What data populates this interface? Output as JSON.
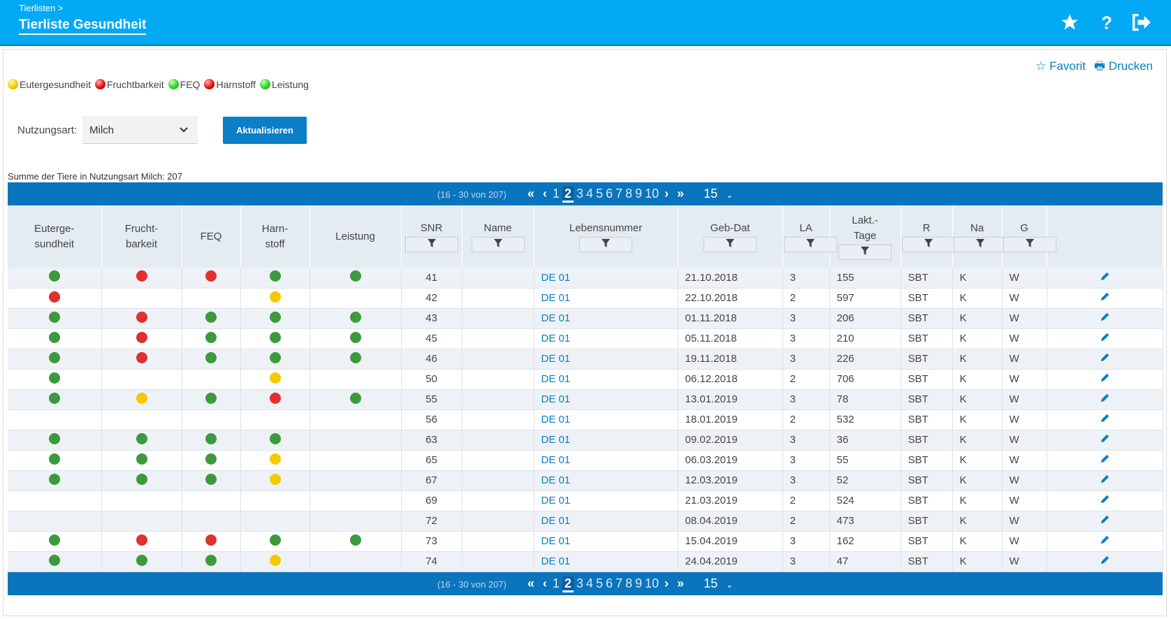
{
  "header": {
    "breadcrumb": "Tierlisten >",
    "title": "Tierliste Gesundheit"
  },
  "actions": {
    "favorit": "Favorit",
    "drucken": "Drucken"
  },
  "legend": [
    {
      "label": "Eutergesundheit",
      "color": "yellow"
    },
    {
      "label": "Fruchtbarkeit",
      "color": "red"
    },
    {
      "label": "FEQ",
      "color": "green"
    },
    {
      "label": "Harnstoff",
      "color": "red"
    },
    {
      "label": "Leistung",
      "color": "green"
    }
  ],
  "filter": {
    "label": "Nutzungsart:",
    "value": "Milch",
    "button": "Aktualisieren"
  },
  "summary": "Summe der Tiere in Nutzungsart Milch: 207",
  "pagination": {
    "range": "(16 - 30 von 207)",
    "pages": [
      1,
      2,
      3,
      4,
      5,
      6,
      7,
      8,
      9,
      10
    ],
    "current": 2,
    "page_size": 15
  },
  "table": {
    "columns": [
      {
        "label": [
          "Euterge-",
          "sundheit"
        ]
      },
      {
        "label": [
          "Frucht-",
          "barkeit"
        ]
      },
      {
        "label": [
          "FEQ"
        ]
      },
      {
        "label": [
          "Harn-",
          "stoff"
        ]
      },
      {
        "label": [
          "Leistung"
        ]
      },
      {
        "label": [
          "SNR"
        ],
        "filter": true
      },
      {
        "label": [
          "Name"
        ],
        "filter": true
      },
      {
        "label": [
          "Lebensnummer"
        ],
        "filter": true
      },
      {
        "label": [
          "Geb-Dat"
        ],
        "filter": true
      },
      {
        "label": [
          "LA"
        ],
        "filter": true
      },
      {
        "label": [
          "Lakt.-",
          "Tage"
        ],
        "filter": true
      },
      {
        "label": [
          "R"
        ],
        "filter": true
      },
      {
        "label": [
          "Na"
        ],
        "filter": true
      },
      {
        "label": [
          "G"
        ],
        "filter": true
      }
    ],
    "rows": [
      {
        "status": [
          "green",
          "red",
          "red",
          "green",
          "green"
        ],
        "snr": "41",
        "lebensnummer": "DE 01",
        "geb_dat": "21.10.2018",
        "la": "3",
        "lakt_tage": "155",
        "r": "SBT",
        "na": "K",
        "g": "W"
      },
      {
        "status": [
          "red",
          null,
          null,
          "yellow",
          null
        ],
        "snr": "42",
        "lebensnummer": "DE 01",
        "geb_dat": "22.10.2018",
        "la": "2",
        "lakt_tage": "597",
        "r": "SBT",
        "na": "K",
        "g": "W"
      },
      {
        "status": [
          "green",
          "red",
          "green",
          "green",
          "green"
        ],
        "snr": "43",
        "lebensnummer": "DE 01",
        "geb_dat": "01.11.2018",
        "la": "3",
        "lakt_tage": "206",
        "r": "SBT",
        "na": "K",
        "g": "W"
      },
      {
        "status": [
          "green",
          "red",
          "green",
          "green",
          "green"
        ],
        "snr": "45",
        "lebensnummer": "DE 01",
        "geb_dat": "05.11.2018",
        "la": "3",
        "lakt_tage": "210",
        "r": "SBT",
        "na": "K",
        "g": "W"
      },
      {
        "status": [
          "green",
          "red",
          "green",
          "green",
          "green"
        ],
        "snr": "46",
        "lebensnummer": "DE 01",
        "geb_dat": "19.11.2018",
        "la": "3",
        "lakt_tage": "226",
        "r": "SBT",
        "na": "K",
        "g": "W"
      },
      {
        "status": [
          "green",
          null,
          null,
          "yellow",
          null
        ],
        "snr": "50",
        "lebensnummer": "DE 01",
        "geb_dat": "06.12.2018",
        "la": "2",
        "lakt_tage": "706",
        "r": "SBT",
        "na": "K",
        "g": "W"
      },
      {
        "status": [
          "green",
          "yellow",
          "green",
          "red",
          "green"
        ],
        "snr": "55",
        "lebensnummer": "DE 01",
        "geb_dat": "13.01.2019",
        "la": "3",
        "lakt_tage": "78",
        "r": "SBT",
        "na": "K",
        "g": "W"
      },
      {
        "status": [
          null,
          null,
          null,
          null,
          null
        ],
        "snr": "56",
        "lebensnummer": "DE 01",
        "geb_dat": "18.01.2019",
        "la": "2",
        "lakt_tage": "532",
        "r": "SBT",
        "na": "K",
        "g": "W"
      },
      {
        "status": [
          "green",
          "green",
          "green",
          "green",
          null
        ],
        "snr": "63",
        "lebensnummer": "DE 01",
        "geb_dat": "09.02.2019",
        "la": "3",
        "lakt_tage": "36",
        "r": "SBT",
        "na": "K",
        "g": "W"
      },
      {
        "status": [
          "green",
          "green",
          "green",
          "yellow",
          null
        ],
        "snr": "65",
        "lebensnummer": "DE 01",
        "geb_dat": "06.03.2019",
        "la": "3",
        "lakt_tage": "55",
        "r": "SBT",
        "na": "K",
        "g": "W"
      },
      {
        "status": [
          "green",
          "green",
          "green",
          "yellow",
          null
        ],
        "snr": "67",
        "lebensnummer": "DE 01",
        "geb_dat": "12.03.2019",
        "la": "3",
        "lakt_tage": "52",
        "r": "SBT",
        "na": "K",
        "g": "W"
      },
      {
        "status": [
          null,
          null,
          null,
          null,
          null
        ],
        "snr": "69",
        "lebensnummer": "DE 01",
        "geb_dat": "21.03.2019",
        "la": "2",
        "lakt_tage": "524",
        "r": "SBT",
        "na": "K",
        "g": "W"
      },
      {
        "status": [
          null,
          null,
          null,
          null,
          null
        ],
        "snr": "72",
        "lebensnummer": "DE 01",
        "geb_dat": "08.04.2019",
        "la": "2",
        "lakt_tage": "473",
        "r": "SBT",
        "na": "K",
        "g": "W"
      },
      {
        "status": [
          "green",
          "red",
          "red",
          "green",
          "green"
        ],
        "snr": "73",
        "lebensnummer": "DE 01",
        "geb_dat": "15.04.2019",
        "la": "3",
        "lakt_tage": "162",
        "r": "SBT",
        "na": "K",
        "g": "W"
      },
      {
        "status": [
          "green",
          "green",
          "green",
          "yellow",
          null
        ],
        "snr": "74",
        "lebensnummer": "DE 01",
        "geb_dat": "24.04.2019",
        "la": "3",
        "lakt_tage": "47",
        "r": "SBT",
        "na": "K",
        "g": "W"
      }
    ]
  }
}
